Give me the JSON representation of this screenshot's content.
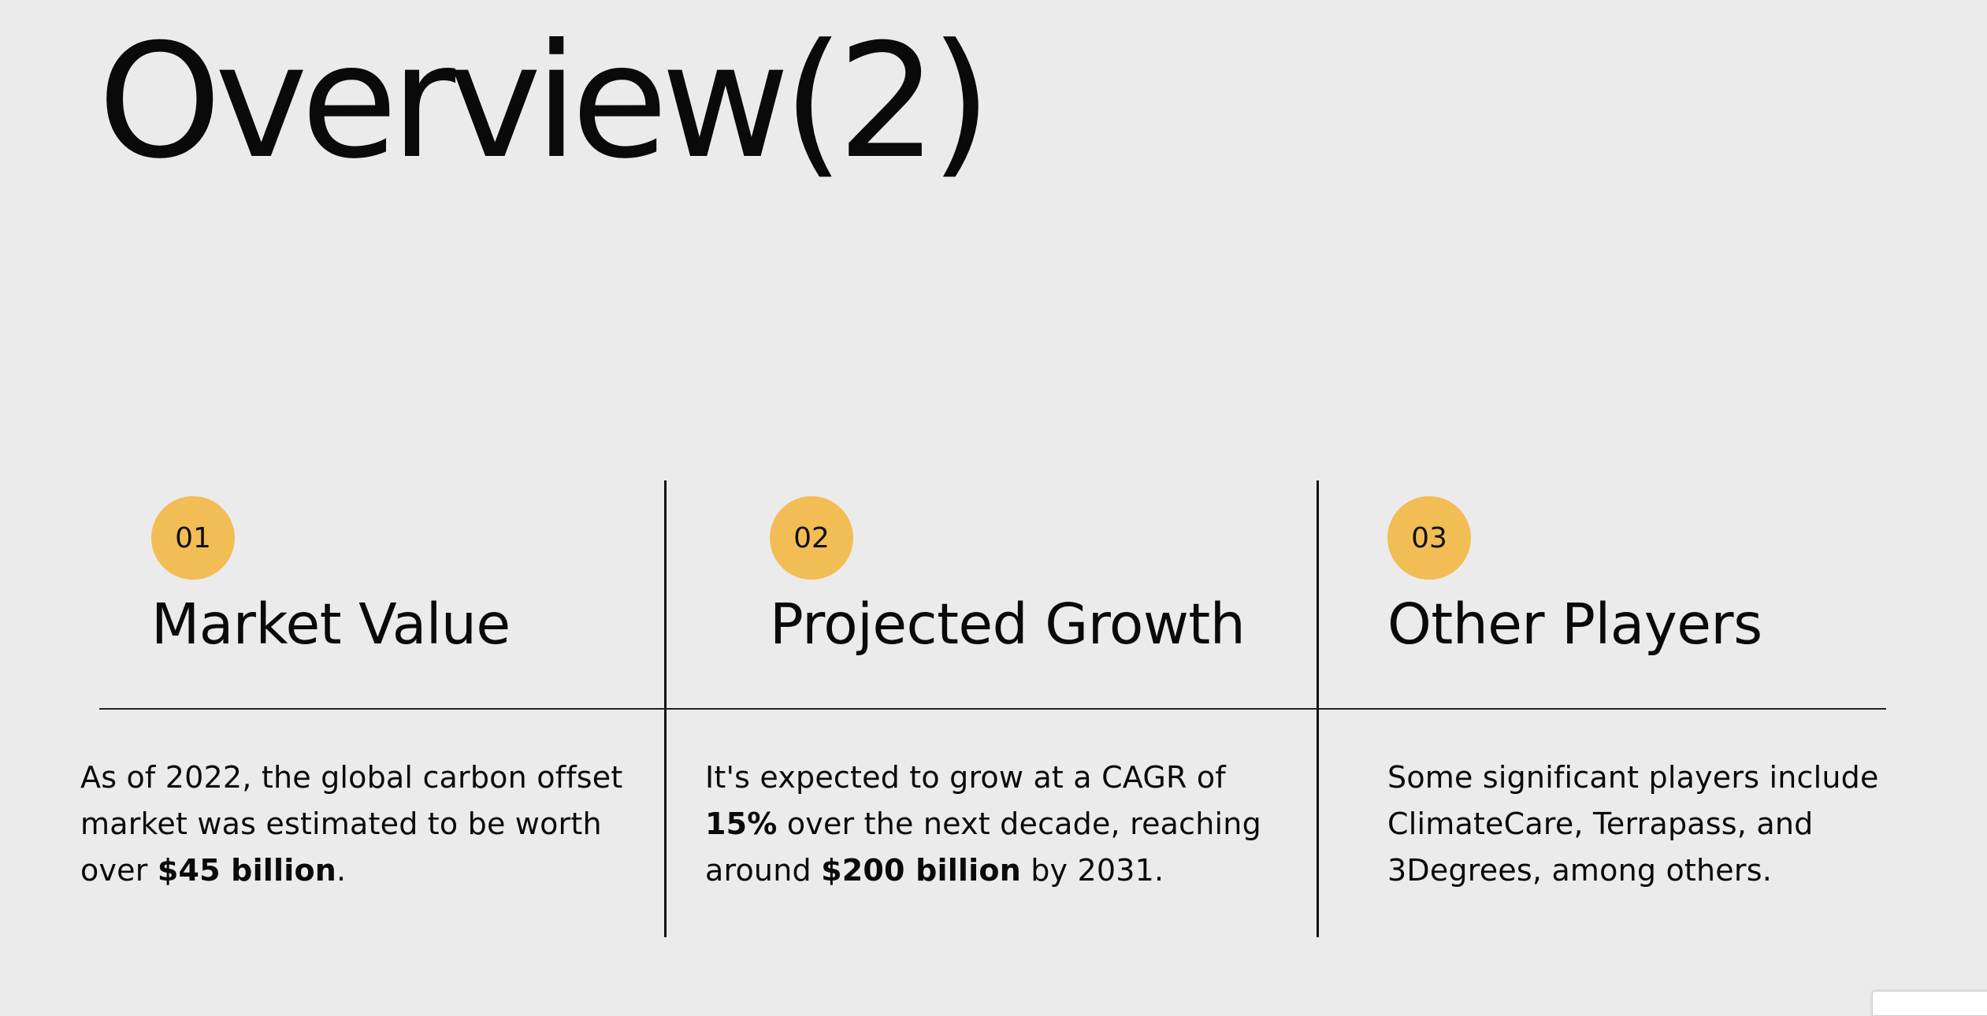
{
  "slide": {
    "title": "Overview(2)"
  },
  "columns": [
    {
      "number": "01",
      "heading": "Market Value",
      "body_parts": [
        "As of 2022, the global carbon offset market was estimated to be worth over ",
        "$45 billion",
        "."
      ]
    },
    {
      "number": "02",
      "heading": "Projected Growth",
      "body_parts": [
        "It's expected to grow at a CAGR of ",
        "15%",
        " over the next decade, reaching around ",
        "$200 billion",
        " by 2031."
      ]
    },
    {
      "number": "03",
      "heading": "Other Players",
      "body_parts": [
        "Some significant players include ClimateCare, Terrapass, and 3Degrees, among others."
      ]
    }
  ],
  "colors": {
    "background": "#ebebeb",
    "badge": "#f3bd55",
    "text": "#0a0a0a"
  }
}
